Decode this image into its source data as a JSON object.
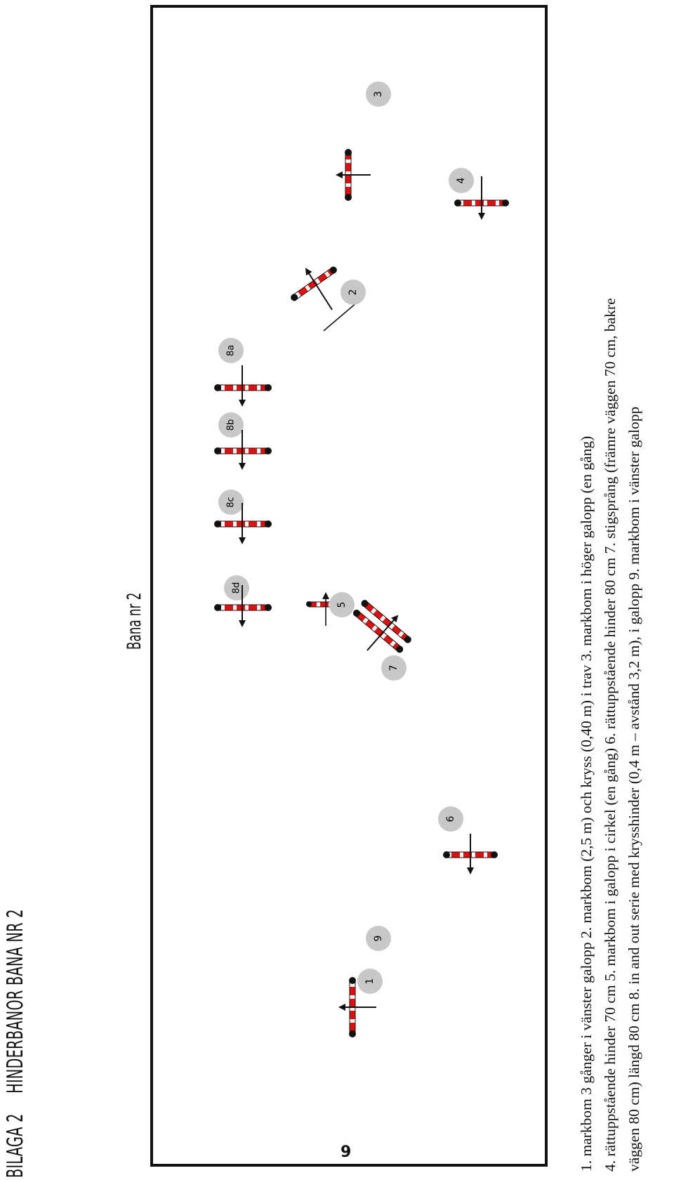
{
  "header": {
    "annex": "BILAGA 2",
    "title": "HINDERBANOR BANA NR 2"
  },
  "course": {
    "title": "Bana nr 2",
    "markers": [
      "1",
      "2",
      "3",
      "4",
      "5",
      "6",
      "7",
      "8a",
      "8b",
      "8c",
      "8d",
      "9"
    ]
  },
  "legend": {
    "line1": "1. markbom 3 gånger i vänster galopp  2. markbom (2,5 m) och kryss (0,40 m) i trav  3. markbom i höger galopp (en gång)",
    "line2": "4. rättuppstående hinder 70 cm  5. markbom i galopp i cirkel (en gång)  6. rättuppstående hinder 80 cm   7. stigsprång (främre väggen 70 cm, bakre",
    "line3": "väggen 80 cm) längd 80 cm  8. in and out serie med krysshinder (0,4 m – avstånd 3,2 m), i galopp  9. markbom i vänster galopp"
  },
  "page": {
    "number": "9"
  },
  "colors": {
    "pole_red": "#e01010",
    "pole_end": "#111111",
    "marker": "#c8c8c8"
  }
}
